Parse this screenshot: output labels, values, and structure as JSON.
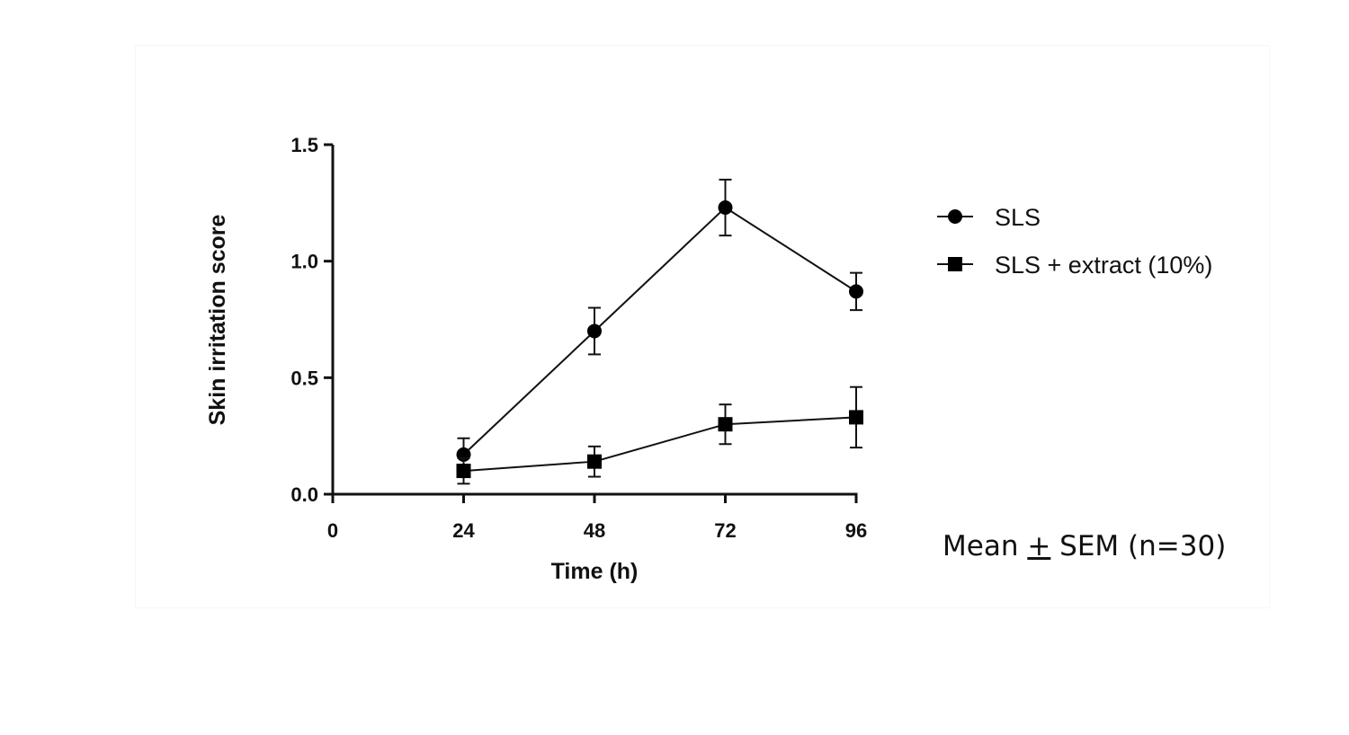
{
  "chart_data": {
    "type": "line",
    "title": "",
    "xlabel": "Time (h)",
    "ylabel": "Skin irritation score",
    "xlim": [
      0,
      96
    ],
    "ylim": [
      0,
      1.5
    ],
    "x_ticks": [
      "0",
      "24",
      "48",
      "72",
      "96"
    ],
    "y_ticks": [
      "0.0",
      "0.5",
      "1.0",
      "1.5"
    ],
    "x": [
      24,
      48,
      72,
      96
    ],
    "grid": false,
    "legend_position": "right",
    "series": [
      {
        "name": "SLS",
        "marker": "circle",
        "values": [
          0.17,
          0.7,
          1.23,
          0.87
        ],
        "errors": [
          0.07,
          0.1,
          0.12,
          0.08
        ]
      },
      {
        "name": "SLS + extract (10%)",
        "marker": "square",
        "values": [
          0.1,
          0.14,
          0.3,
          0.33
        ],
        "errors": [
          0.055,
          0.065,
          0.085,
          0.13
        ]
      }
    ],
    "annotation": {
      "prefix": "Mean ",
      "symbol": "+",
      "suffix": " SEM (n=30)"
    }
  }
}
